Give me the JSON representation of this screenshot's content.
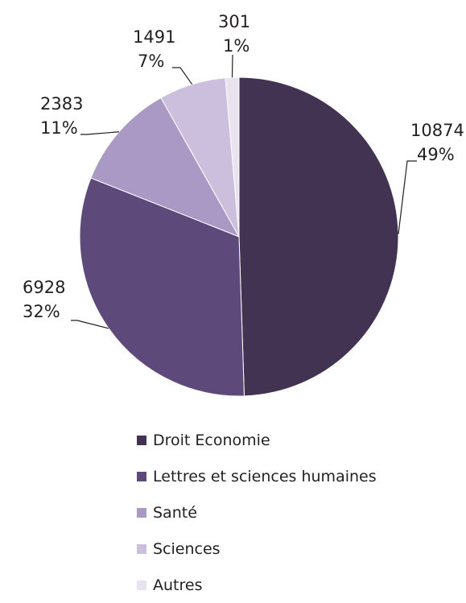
{
  "chart_data": {
    "type": "pie",
    "categories": [
      "Droit Economie",
      "Lettres et sciences humaines",
      "Santé",
      "Sciences",
      "Autres"
    ],
    "values": [
      10874,
      6928,
      2383,
      1491,
      301
    ],
    "percent_labels": [
      "49%",
      "32%",
      "11%",
      "7%",
      "1%"
    ],
    "value_labels": [
      "10874",
      "6928",
      "2383",
      "1491",
      "301"
    ],
    "colors": [
      "#433352",
      "#5e4a7a",
      "#a999c4",
      "#cbbfdd",
      "#e8e3ef"
    ],
    "legend": {
      "placement": "bottom",
      "entries": [
        "Droit Economie",
        "Lettres et sciences humaines",
        "Santé",
        "Sciences",
        "Autres"
      ]
    }
  }
}
